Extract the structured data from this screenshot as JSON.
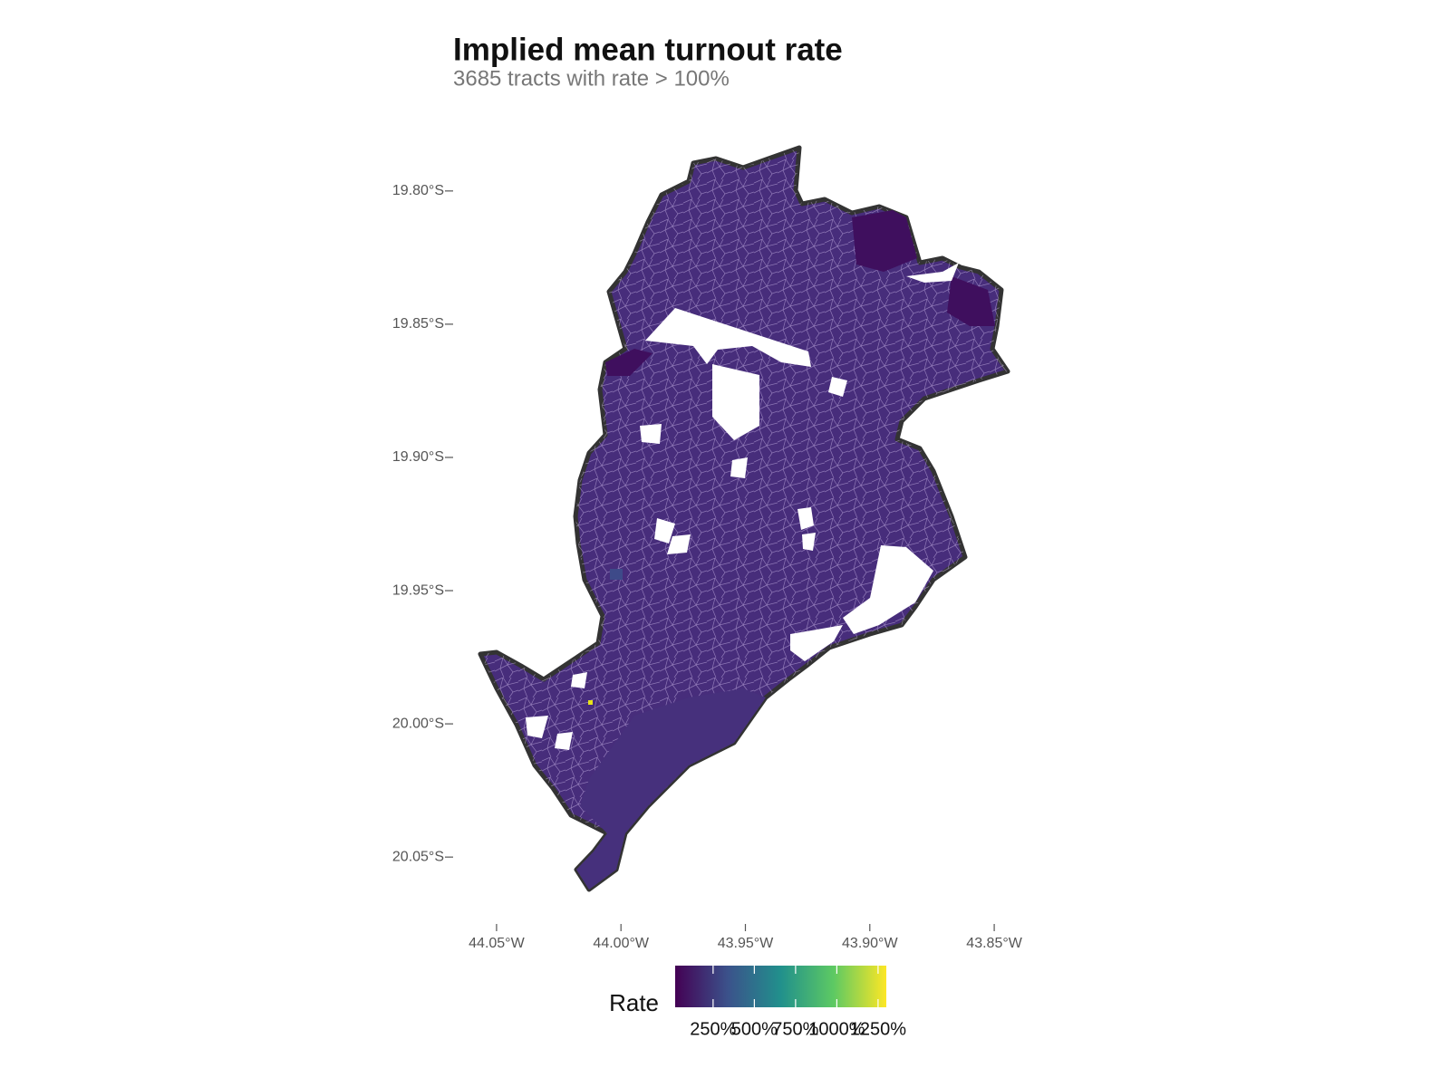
{
  "chart_data": {
    "type": "map",
    "title": "Implied mean turnout rate",
    "subtitle": "3685 tracts with rate > 100%",
    "xlim": [
      -44.07,
      -43.83
    ],
    "ylim": [
      -20.07,
      -19.78
    ],
    "xticks": [
      {
        "value": -44.05,
        "label": "44.05°W"
      },
      {
        "value": -44.0,
        "label": "44.00°W"
      },
      {
        "value": -43.95,
        "label": "43.95°W"
      },
      {
        "value": -43.9,
        "label": "43.90°W"
      },
      {
        "value": -43.85,
        "label": "43.85°W"
      }
    ],
    "yticks": [
      {
        "value": -19.8,
        "label": "19.80°S"
      },
      {
        "value": -19.85,
        "label": "19.85°S"
      },
      {
        "value": -19.9,
        "label": "19.90°S"
      },
      {
        "value": -19.95,
        "label": "19.95°S"
      },
      {
        "value": -20.0,
        "label": "20.00°S"
      },
      {
        "value": -20.05,
        "label": "20.05°S"
      }
    ],
    "legend": {
      "title": "Rate",
      "lim": [
        20,
        1300
      ],
      "colors": [
        "#440154",
        "#3b528b",
        "#21908c",
        "#5dc963",
        "#fde725"
      ],
      "ticks": [
        {
          "value": 250,
          "label": "250%"
        },
        {
          "value": 500,
          "label": "500%"
        },
        {
          "value": 750,
          "label": "750%"
        },
        {
          "value": 1000,
          "label": "1000%"
        },
        {
          "value": 1250,
          "label": "1250%"
        }
      ]
    }
  }
}
